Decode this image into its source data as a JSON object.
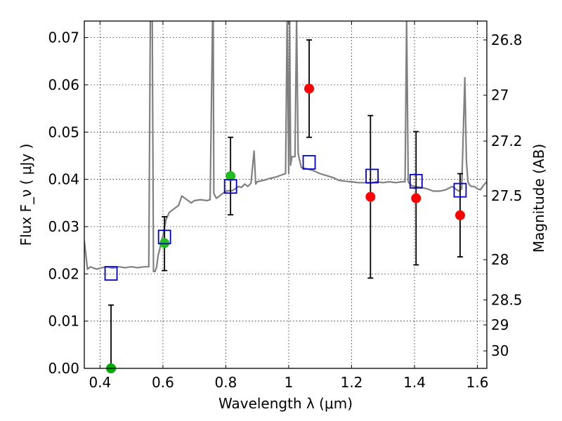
{
  "chart_data": {
    "type": "scatter",
    "xlabel": "Wavelength  λ (μm)",
    "ylabel": "Flux  F_ν  ( μJy )",
    "ylabel_right": "Magnitude (AB)",
    "xlim": [
      0.35,
      1.63
    ],
    "ylim": [
      0.0,
      0.0735
    ],
    "grid": true,
    "x_ticks": [
      0.4,
      0.6,
      0.8,
      1.0,
      1.2,
      1.4,
      1.6
    ],
    "x_tick_labels": [
      "0.4",
      "0.6",
      "0.8",
      "1",
      "1.2",
      "1.4",
      "1.6"
    ],
    "y_ticks": [
      0.0,
      0.01,
      0.02,
      0.03,
      0.04,
      0.05,
      0.06,
      0.07
    ],
    "y_tick_labels": [
      "0.00",
      "0.01",
      "0.02",
      "0.03",
      "0.04",
      "0.05",
      "0.06",
      "0.07"
    ],
    "right_ticks": [
      {
        "label": "26.8",
        "flux": 0.0695
      },
      {
        "label": "27",
        "flux": 0.0578
      },
      {
        "label": "27.2",
        "flux": 0.0481
      },
      {
        "label": "27.5",
        "flux": 0.0365
      },
      {
        "label": "28",
        "flux": 0.023
      },
      {
        "label": "28.5",
        "flux": 0.0145
      },
      {
        "label": "29",
        "flux": 0.0092
      },
      {
        "label": "30",
        "flux": 0.0037
      }
    ],
    "series": [
      {
        "kind": "line",
        "color": "#808080",
        "x": [
          0.35,
          0.36,
          0.37,
          0.38,
          0.39,
          0.4,
          0.42,
          0.44,
          0.46,
          0.48,
          0.5,
          0.52,
          0.54,
          0.555,
          0.56,
          0.563,
          0.566,
          0.57,
          0.575,
          0.58,
          0.585,
          0.59,
          0.595,
          0.6,
          0.61,
          0.62,
          0.63,
          0.64,
          0.65,
          0.66,
          0.67,
          0.68,
          0.69,
          0.7,
          0.72,
          0.74,
          0.75,
          0.758,
          0.76,
          0.762,
          0.77,
          0.78,
          0.79,
          0.8,
          0.81,
          0.82,
          0.83,
          0.84,
          0.85,
          0.86,
          0.87,
          0.88,
          0.89,
          0.895,
          0.9,
          0.92,
          0.94,
          0.96,
          0.98,
          0.99,
          0.995,
          1.0,
          1.003,
          1.006,
          1.01,
          1.02,
          1.025,
          1.03,
          1.035,
          1.04,
          1.06,
          1.08,
          1.1,
          1.12,
          1.14,
          1.16,
          1.18,
          1.2,
          1.22,
          1.24,
          1.26,
          1.28,
          1.3,
          1.32,
          1.34,
          1.36,
          1.37,
          1.375,
          1.38,
          1.385,
          1.39,
          1.4,
          1.42,
          1.44,
          1.46,
          1.48,
          1.5,
          1.52,
          1.54,
          1.55,
          1.56,
          1.565,
          1.57,
          1.575,
          1.58,
          1.59,
          1.6,
          1.61,
          1.62,
          1.63
        ],
        "y": [
          0.027,
          0.021,
          0.0215,
          0.0212,
          0.021,
          0.0212,
          0.0215,
          0.0212,
          0.0215,
          0.0213,
          0.0215,
          0.0213,
          0.0215,
          0.0215,
          0.074,
          0.074,
          0.074,
          0.0205,
          0.0205,
          0.0215,
          0.024,
          0.0252,
          0.027,
          0.028,
          0.0315,
          0.033,
          0.0335,
          0.034,
          0.0345,
          0.0365,
          0.036,
          0.0355,
          0.035,
          0.0355,
          0.0357,
          0.0355,
          0.0357,
          0.074,
          0.074,
          0.037,
          0.036,
          0.0365,
          0.037,
          0.0375,
          0.0376,
          0.0376,
          0.038,
          0.0385,
          0.0383,
          0.039,
          0.0385,
          0.0392,
          0.046,
          0.039,
          0.0395,
          0.0398,
          0.0402,
          0.0405,
          0.041,
          0.0412,
          0.074,
          0.0412,
          0.074,
          0.043,
          0.0448,
          0.0448,
          0.074,
          0.0455,
          0.044,
          0.0425,
          0.0422,
          0.0418,
          0.0412,
          0.0408,
          0.0404,
          0.0398,
          0.0396,
          0.0395,
          0.0393,
          0.0393,
          0.0392,
          0.0395,
          0.0393,
          0.0395,
          0.0393,
          0.0395,
          0.0395,
          0.074,
          0.0395,
          0.039,
          0.0387,
          0.0385,
          0.0383,
          0.038,
          0.0375,
          0.0375,
          0.0378,
          0.0385,
          0.0375,
          0.038,
          0.0615,
          0.044,
          0.0395,
          0.0388,
          0.0385,
          0.0385,
          0.038,
          0.0378,
          0.0388,
          0.0395
        ]
      },
      {
        "kind": "model_squares",
        "color": "#0000cc",
        "x": [
          0.435,
          0.605,
          0.815,
          1.065,
          1.265,
          1.405,
          1.545
        ],
        "y": [
          0.0201,
          0.0278,
          0.0385,
          0.0436,
          0.0407,
          0.0396,
          0.0377
        ]
      },
      {
        "kind": "observed_points",
        "x": [
          0.435,
          0.605,
          0.815,
          1.065,
          1.26,
          1.405,
          1.545
        ],
        "y": [
          0.0,
          0.0265,
          0.0407,
          0.0592,
          0.0363,
          0.036,
          0.0324
        ],
        "yerr_low": [
          0.0,
          0.0058,
          0.0082,
          0.0103,
          0.0172,
          0.0141,
          0.0088
        ],
        "yerr_high": [
          0.0134,
          0.0056,
          0.0082,
          0.0103,
          0.0172,
          0.0141,
          0.0088
        ],
        "colors": [
          "#00aa00",
          "#22bb22",
          "#22bb22",
          "#ff0000",
          "#ff0000",
          "#ff0000",
          "#ff0000"
        ]
      }
    ]
  }
}
